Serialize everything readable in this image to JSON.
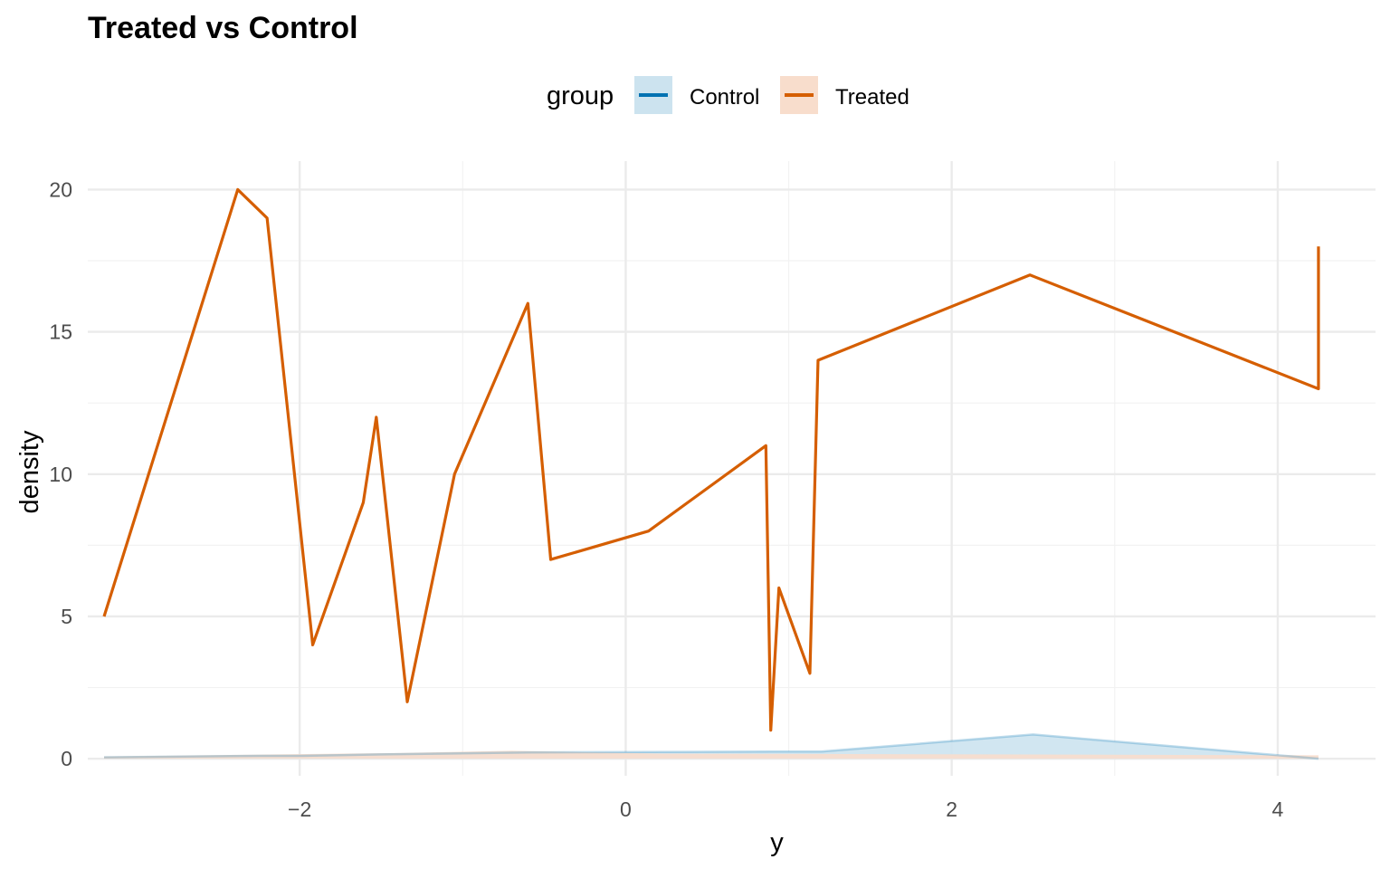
{
  "chart_data": {
    "type": "area",
    "title": "Treated vs Control",
    "xlabel": "y",
    "ylabel": "density",
    "xlim": [
      -3.3,
      4.6
    ],
    "ylim": [
      -0.6,
      21.0
    ],
    "xticks": [
      -2,
      0,
      2,
      4
    ],
    "yticks": [
      0,
      5,
      10,
      15,
      20
    ],
    "grid": true,
    "legend": {
      "title": "group",
      "placement": "top",
      "entries": [
        "Control",
        "Treated"
      ]
    },
    "series": [
      {
        "name": "Control",
        "color": "#0072B2",
        "fill": "#cce3ef",
        "x": [
          -3.2,
          -2.25,
          -2.0,
          -1.5,
          -0.6,
          0.9,
          1.2,
          2.5,
          4.25
        ],
        "values": [
          0.05,
          0.1,
          0.1,
          0.15,
          0.22,
          0.25,
          0.25,
          0.85,
          0.0
        ]
      },
      {
        "name": "Treated",
        "color": "#D55E00",
        "fill": "#f8ddcc",
        "x": [
          -3.2,
          -2.38,
          -2.2,
          -1.92,
          -1.61,
          -1.53,
          -1.34,
          -1.05,
          -0.6,
          -0.46,
          0.14,
          0.86,
          0.89,
          0.94,
          1.13,
          1.18,
          2.48,
          4.25,
          4.25
        ],
        "values": [
          5,
          20,
          19,
          4,
          9,
          12,
          2,
          10,
          16,
          7,
          8,
          11,
          1,
          6,
          3,
          14,
          17,
          13,
          18
        ]
      }
    ]
  }
}
